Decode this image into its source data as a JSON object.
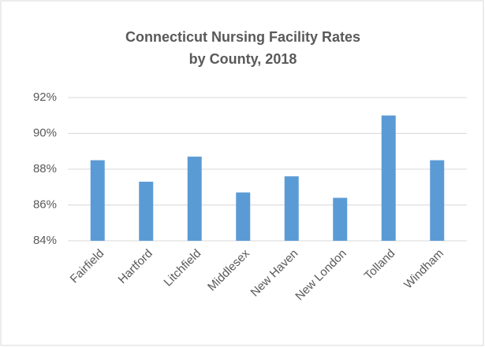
{
  "chart_data": {
    "type": "bar",
    "title": [
      "Connecticut Nursing Facility Rates",
      "by County, 2018"
    ],
    "categories": [
      "Fairfield",
      "Hartford",
      "Litchfield",
      "Middlesex",
      "New Haven",
      "New London",
      "Tolland",
      "Windham"
    ],
    "values": [
      88.5,
      87.3,
      88.7,
      86.7,
      87.6,
      86.4,
      91.0,
      88.5
    ],
    "color": "#5b9bd5",
    "ylim": [
      84,
      92
    ],
    "yticks": [
      {
        "value": 84,
        "label": "84%"
      },
      {
        "value": 86,
        "label": "86%"
      },
      {
        "value": 88,
        "label": "88%"
      },
      {
        "value": 90,
        "label": "90%"
      },
      {
        "value": 92,
        "label": "92%"
      }
    ],
    "grid": true
  }
}
